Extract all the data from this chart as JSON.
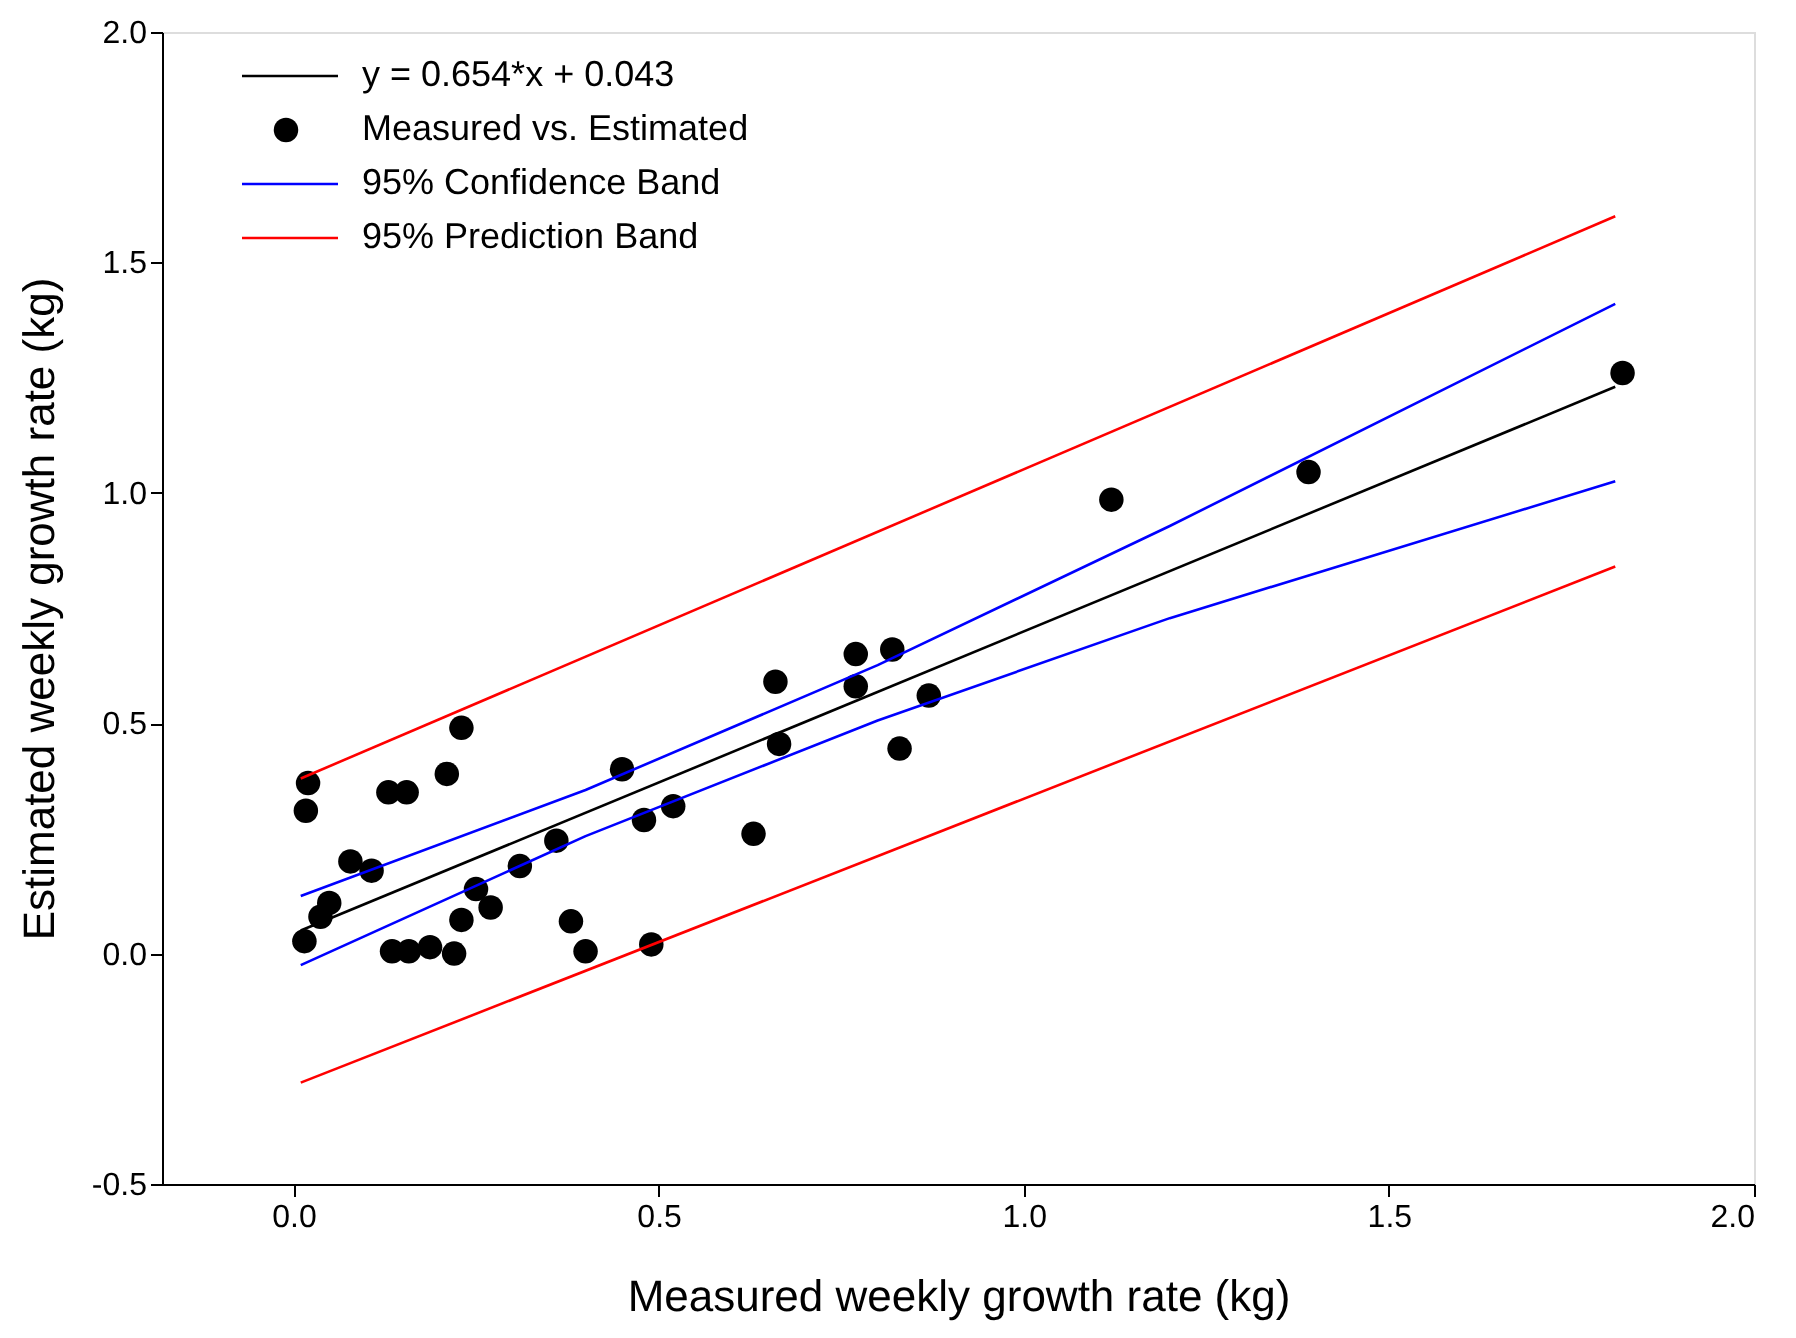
{
  "chart_data": {
    "type": "scatter",
    "xlabel": "Measured weekly growth rate (kg)",
    "ylabel": "Estimated weekly growth rate (kg)",
    "xlim": [
      -0.18,
      2.0
    ],
    "ylim": [
      -0.5,
      2.0
    ],
    "xticks": [
      {
        "value": 0,
        "label": "0.0"
      },
      {
        "value": 0.5,
        "label": "0.5"
      },
      {
        "value": 1,
        "label": "1.0"
      },
      {
        "value": 1.5,
        "label": "1.5"
      },
      {
        "value": 2,
        "label": "2.0"
      }
    ],
    "yticks": [
      {
        "value": -0.5,
        "label": "-0.5"
      },
      {
        "value": 0,
        "label": "0.0"
      },
      {
        "value": 0.5,
        "label": "0.5"
      },
      {
        "value": 1,
        "label": "1.0"
      },
      {
        "value": 1.5,
        "label": "1.5"
      },
      {
        "value": 2,
        "label": "2.0"
      }
    ],
    "grid": false,
    "legend": "top left",
    "series": [
      {
        "type": "line",
        "name": "y = 0.654*x + 0.043",
        "color": "#000000",
        "x": [
          0.01,
          1.81
        ],
        "values": [
          0.05,
          1.23
        ]
      },
      {
        "name": "Measured vs. Estimated",
        "color": "#000000",
        "marker": "circle",
        "x": [
          0.02,
          0.017,
          0.23,
          0.21,
          0.13,
          0.155,
          0.078,
          0.107,
          0.049,
          0.037,
          0.015,
          0.135,
          0.158,
          0.187,
          0.22,
          0.23,
          0.25,
          0.27,
          0.31,
          0.36,
          0.38,
          0.4,
          0.49,
          0.45,
          0.48,
          0.52,
          0.63,
          0.66,
          0.665,
          0.77,
          0.82,
          0.77,
          0.87,
          0.83,
          1.12,
          1.39,
          1.82
        ],
        "values": [
          0.37,
          0.31,
          0.49,
          0.39,
          0.35,
          0.35,
          0.2,
          0.18,
          0.11,
          0.08,
          0.027,
          0.005,
          0.005,
          0.014,
          0.0,
          0.073,
          0.14,
          0.1,
          0.19,
          0.245,
          0.07,
          0.005,
          0.02,
          0.4,
          0.29,
          0.32,
          0.26,
          0.59,
          0.455,
          0.65,
          0.66,
          0.58,
          0.56,
          0.445,
          0.985,
          1.045,
          1.26
        ]
      },
      {
        "type": "line",
        "name": "95% Confidence Band",
        "color": "#0000ff",
        "x": [
          0.01,
          0.4,
          0.8,
          1.2,
          1.81
        ],
        "values": [
          0.125,
          0.355,
          0.626,
          0.928,
          1.41
        ]
      },
      {
        "type": "line",
        "color": "#0000ff",
        "x": [
          0.01,
          0.4,
          0.8,
          1.2,
          1.81
        ],
        "values": [
          -0.025,
          0.255,
          0.506,
          0.728,
          1.025
        ]
      },
      {
        "type": "line",
        "name": "95% Prediction Band",
        "color": "#ff0000",
        "x": [
          0.01,
          1.81
        ],
        "values": [
          0.38,
          1.6
        ]
      },
      {
        "type": "line",
        "color": "#ff0000",
        "x": [
          0.01,
          1.81
        ],
        "values": [
          -0.28,
          0.84
        ]
      }
    ]
  }
}
